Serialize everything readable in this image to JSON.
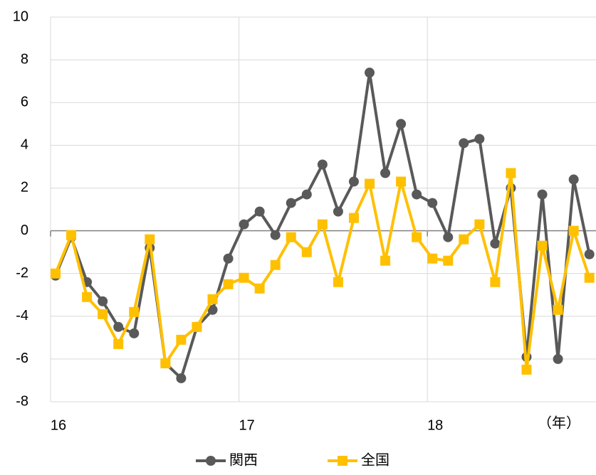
{
  "chart_data": {
    "type": "line",
    "categories": [
      "16",
      null,
      null,
      null,
      null,
      null,
      null,
      null,
      null,
      null,
      null,
      null,
      "17",
      null,
      null,
      null,
      null,
      null,
      null,
      null,
      null,
      null,
      null,
      null,
      "18",
      null,
      null,
      null,
      null,
      null,
      null,
      null,
      null,
      null,
      null
    ],
    "x_label": "（年）",
    "series": [
      {
        "name": "関西",
        "color": "#595959",
        "marker": "circle",
        "values": [
          -2.1,
          -0.3,
          -2.4,
          -3.3,
          -4.5,
          -4.8,
          -0.8,
          -6.2,
          -6.9,
          -4.5,
          -3.7,
          -1.3,
          0.3,
          0.9,
          -0.2,
          1.3,
          1.7,
          3.1,
          0.9,
          2.3,
          7.4,
          2.7,
          5.0,
          1.7,
          1.3,
          -0.3,
          4.1,
          4.3,
          -0.6,
          2.0,
          -5.9,
          1.7,
          -6.0,
          2.4,
          -1.1
        ]
      },
      {
        "name": "全国",
        "color": "#ffc000",
        "marker": "square",
        "values": [
          -2.0,
          -0.2,
          -3.1,
          -3.9,
          -5.3,
          -3.8,
          -0.4,
          -6.2,
          -5.1,
          -4.5,
          -3.2,
          -2.5,
          -2.2,
          -2.7,
          -1.6,
          -0.3,
          -1.0,
          0.3,
          -2.4,
          0.6,
          2.2,
          -1.4,
          2.3,
          -0.3,
          -1.3,
          -1.4,
          -0.4,
          0.3,
          -2.4,
          2.7,
          -6.5,
          -0.7,
          -3.7,
          0.0,
          -2.2
        ]
      }
    ],
    "ylim": [
      -8,
      10
    ],
    "yticks": [
      -8,
      -6,
      -4,
      -2,
      0,
      2,
      4,
      6,
      8,
      10
    ],
    "grid": true,
    "legend": "bottom"
  }
}
